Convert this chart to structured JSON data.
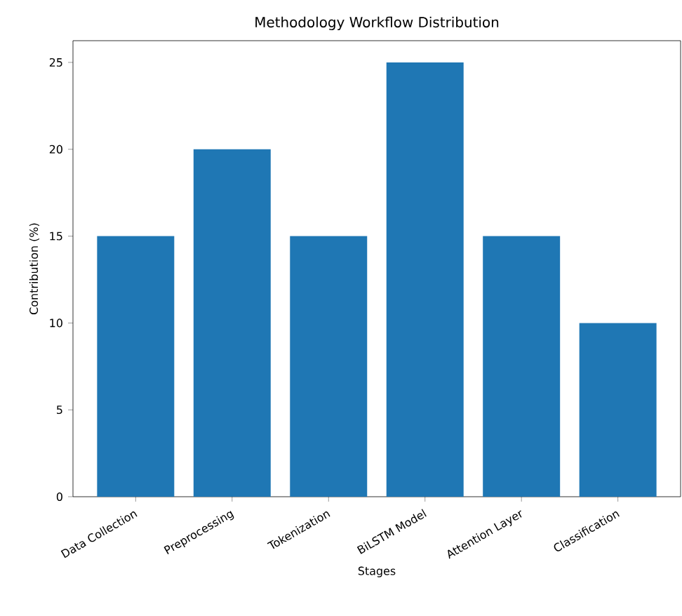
{
  "chart_data": {
    "type": "bar",
    "title": "Methodology Workflow Distribution",
    "xlabel": "Stages",
    "ylabel": "Contribution (%)",
    "categories": [
      "Data Collection",
      "Preprocessing",
      "Tokenization",
      "BiLSTM Model",
      "Attention Layer",
      "Classification"
    ],
    "values": [
      15,
      20,
      15,
      25,
      15,
      10
    ],
    "color": "#1f77b4",
    "ylim": [
      0,
      26.25
    ],
    "yticks": [
      0,
      5,
      10,
      15,
      20,
      25
    ],
    "grid": false
  }
}
